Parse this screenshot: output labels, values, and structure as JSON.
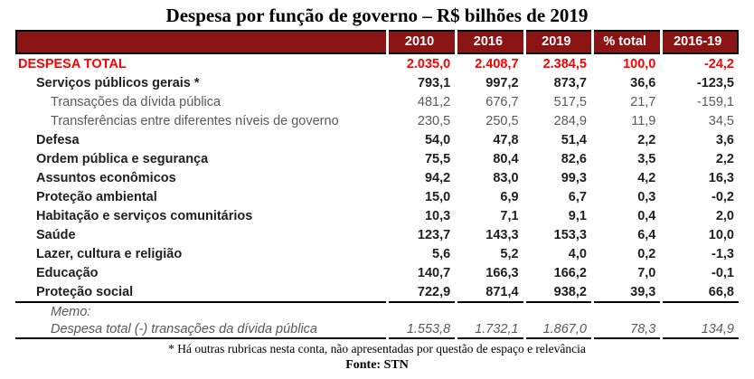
{
  "title": "Despesa por função de governo – R$ bilhões de 2019",
  "colors": {
    "header_bg": "#8b1414",
    "header_text": "#ffffff",
    "total_row_text": "#ff0000",
    "bold_row_text": "#1f1f1f",
    "sub_row_text": "#595959",
    "rule": "#000000"
  },
  "table": {
    "columns": [
      "",
      "2010",
      "2016",
      "2019",
      "% total",
      "2016-19"
    ],
    "rows": [
      {
        "label": "DESPESA TOTAL",
        "values": [
          "2.035,0",
          "2.408,7",
          "2.384,5",
          "100,0",
          "-24,2"
        ],
        "style": "total",
        "indent": 0,
        "rule": false
      },
      {
        "label": "Serviços públicos gerais *",
        "values": [
          "793,1",
          "997,2",
          "873,7",
          "36,6",
          "-123,5"
        ],
        "style": "bold",
        "indent": 1,
        "rule": false
      },
      {
        "label": "Transações da dívida pública",
        "values": [
          "481,2",
          "676,7",
          "517,5",
          "21,7",
          "-159,1"
        ],
        "style": "sub",
        "indent": 2,
        "rule": false
      },
      {
        "label": "Transferências entre diferentes níveis de governo",
        "values": [
          "230,5",
          "250,5",
          "284,9",
          "11,9",
          "34,5"
        ],
        "style": "sub",
        "indent": 2,
        "rule": false
      },
      {
        "label": "Defesa",
        "values": [
          "54,0",
          "47,8",
          "51,4",
          "2,2",
          "3,6"
        ],
        "style": "bold",
        "indent": 1,
        "rule": false
      },
      {
        "label": "Ordem pública e segurança",
        "values": [
          "75,5",
          "80,4",
          "82,6",
          "3,5",
          "2,2"
        ],
        "style": "bold",
        "indent": 1,
        "rule": false
      },
      {
        "label": "Assuntos econômicos",
        "values": [
          "94,2",
          "83,0",
          "99,3",
          "4,2",
          "16,3"
        ],
        "style": "bold",
        "indent": 1,
        "rule": false
      },
      {
        "label": "Proteção ambiental",
        "values": [
          "15,0",
          "6,9",
          "6,7",
          "0,3",
          "-0,2"
        ],
        "style": "bold",
        "indent": 1,
        "rule": false
      },
      {
        "label": "Habitação e serviços comunitários",
        "values": [
          "10,3",
          "7,1",
          "9,1",
          "0,4",
          "2,0"
        ],
        "style": "bold",
        "indent": 1,
        "rule": false
      },
      {
        "label": "Saúde",
        "values": [
          "123,7",
          "143,3",
          "153,3",
          "6,4",
          "10,0"
        ],
        "style": "bold",
        "indent": 1,
        "rule": false
      },
      {
        "label": "Lazer, cultura e religião",
        "values": [
          "5,6",
          "5,2",
          "4,0",
          "0,2",
          "-1,3"
        ],
        "style": "bold",
        "indent": 1,
        "rule": false
      },
      {
        "label": "Educação",
        "values": [
          "140,7",
          "166,3",
          "166,2",
          "7,0",
          "-0,1"
        ],
        "style": "bold",
        "indent": 1,
        "rule": false
      },
      {
        "label": "Proteção social",
        "values": [
          "722,9",
          "871,4",
          "938,2",
          "39,3",
          "66,8"
        ],
        "style": "bold",
        "indent": 1,
        "rule": true
      },
      {
        "label": "Memo:",
        "values": [
          "",
          "",
          "",
          "",
          ""
        ],
        "style": "memo",
        "indent": 2,
        "rule": false
      },
      {
        "label": "Despesa total (-) transações da dívida pública",
        "values": [
          "1.553,8",
          "1.732,1",
          "1.867,0",
          "78,3",
          "134,9"
        ],
        "style": "memo",
        "indent": 2,
        "rule": true
      }
    ]
  },
  "footnote": "* Há outras rubricas nesta conta, não apresentadas por questão de espaço e relevância",
  "source": "Fonte: STN"
}
